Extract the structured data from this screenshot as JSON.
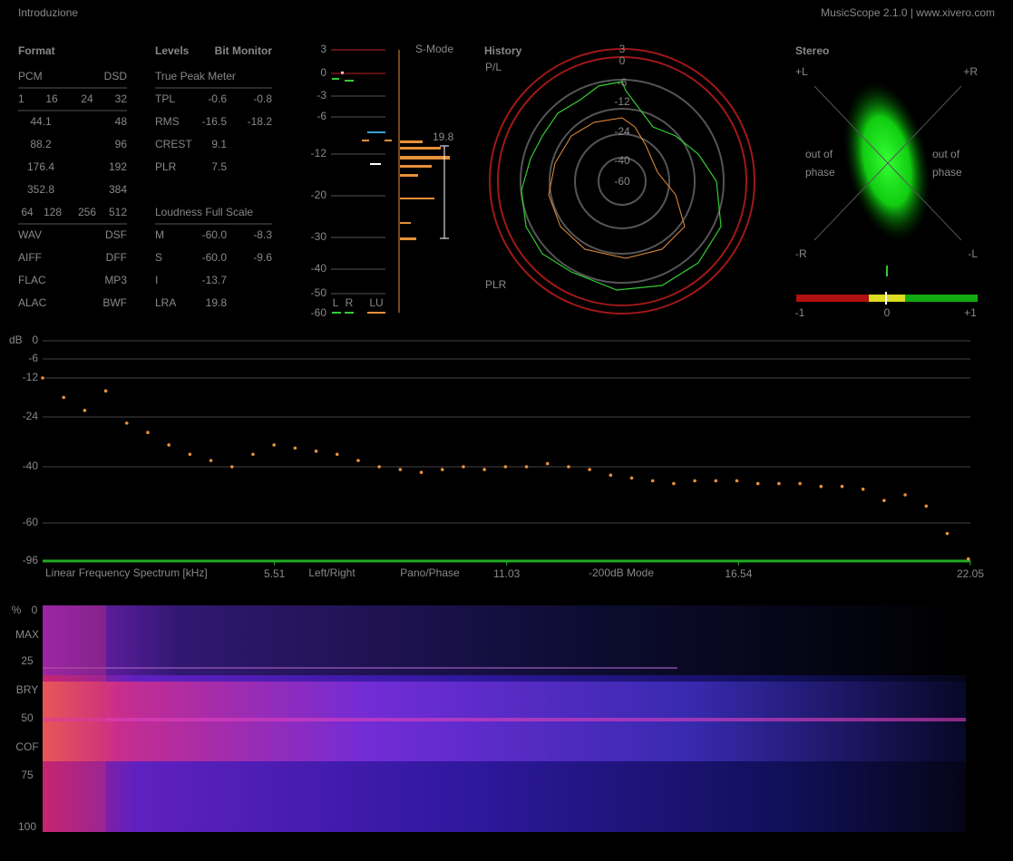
{
  "header": {
    "title": "Introduzione",
    "app": "MusicScope 2.1.0 | www.xivero.com"
  },
  "format": {
    "title": "Format",
    "rows": [
      [
        "PCM",
        "DSD"
      ],
      [
        "1",
        "16",
        "24",
        "32"
      ],
      [
        "44.1",
        "48"
      ],
      [
        "88.2",
        "96"
      ],
      [
        "176.4",
        "192"
      ],
      [
        "352.8",
        "384"
      ],
      [
        "64",
        "128",
        "256",
        "512"
      ],
      [
        "WAV",
        "DSF"
      ],
      [
        "AIFF",
        "DFF"
      ],
      [
        "FLAC",
        "MP3"
      ],
      [
        "ALAC",
        "BWF"
      ]
    ]
  },
  "levels": {
    "title": "Levels",
    "bit_monitor": "Bit Monitor",
    "true_peak_meter": "True Peak Meter",
    "rows": [
      [
        "TPL",
        "-0.6",
        "-0.8"
      ],
      [
        "RMS",
        "-16.5",
        "-18.2"
      ],
      [
        "CREST",
        "9.1"
      ],
      [
        "PLR",
        "7.5"
      ]
    ],
    "loudness_title": "Loudness Full Scale",
    "loudness_rows": [
      [
        "M",
        "-60.0",
        "-8.3"
      ],
      [
        "S",
        "-60.0",
        "-9.6"
      ],
      [
        "I",
        "-13.7"
      ],
      [
        "LRA",
        "19.8"
      ]
    ]
  },
  "meter": {
    "scale": [
      "3",
      "0",
      "-3",
      "-6",
      "-12",
      "-20",
      "-30",
      "-40",
      "-50",
      "-60"
    ],
    "mode": "S-Mode",
    "lra": "19.8",
    "labels": [
      "L",
      "R",
      "LU"
    ]
  },
  "history": {
    "title": "History",
    "top": "P/L",
    "bottom": "PLR",
    "scale": [
      "3",
      "0",
      "-6",
      "-12",
      "-24",
      "-40",
      "-60"
    ]
  },
  "stereo": {
    "title": "Stereo",
    "corners": [
      "+L",
      "+R",
      "-R",
      "-L"
    ],
    "out_of_phase": [
      "out of",
      "phase"
    ],
    "balance": [
      "-1",
      "0",
      "+1"
    ]
  },
  "spectrum": {
    "unit": "dB",
    "title": "Linear Frequency Spectrum [kHz]",
    "modes": [
      "Left/Right",
      "Pano/Phase",
      "-200dB Mode"
    ],
    "yticks": [
      0,
      -6,
      -12,
      -24,
      -40,
      -60,
      -96
    ],
    "xlim": [
      0,
      22.05
    ],
    "xticks": [
      5.51,
      11.03,
      16.54,
      22.05
    ],
    "x": [
      0,
      0.5,
      1,
      1.5,
      2,
      2.5,
      3,
      3.5,
      4,
      4.5,
      5,
      5.5,
      6,
      6.5,
      7,
      7.5,
      8,
      8.5,
      9,
      9.5,
      10,
      10.5,
      11,
      11.5,
      12,
      12.5,
      13,
      13.5,
      14,
      14.5,
      15,
      15.5,
      16,
      16.5,
      17,
      17.5,
      18,
      18.5,
      19,
      19.5,
      20,
      20.5,
      21,
      21.5,
      22
    ],
    "values": [
      -12,
      -18,
      -22,
      -16,
      -26,
      -29,
      -33,
      -36,
      -38,
      -40,
      -36,
      -33,
      -34,
      -35,
      -36,
      -38,
      -40,
      -41,
      -42,
      -41,
      -40,
      -41,
      -40,
      -40,
      -39,
      -40,
      -41,
      -43,
      -44,
      -45,
      -46,
      -45,
      -45,
      -45,
      -46,
      -46,
      -46,
      -47,
      -47,
      -48,
      -52,
      -50,
      -54,
      -70,
      -94
    ],
    "color": "#e8903a"
  },
  "spectrogram": {
    "labels": [
      "%",
      "0",
      "MAX",
      "25",
      "BRY",
      "50",
      "COF",
      "75",
      "100"
    ]
  }
}
